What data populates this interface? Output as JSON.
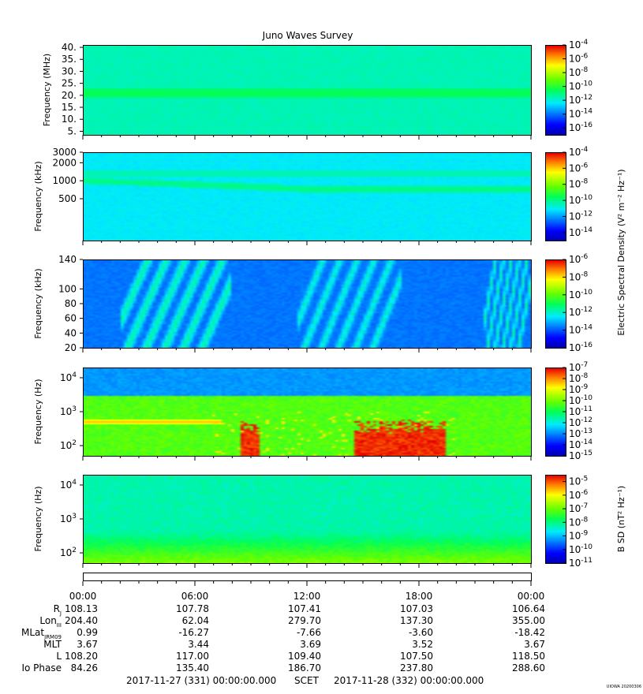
{
  "title": "Juno Waves Survey",
  "colors": {
    "background": "#ffffff",
    "text": "#000000"
  },
  "chart_data": [
    {
      "type": "heatmap",
      "panel": 1,
      "ylabel": "Frequency (MHz)",
      "yscale": "linear",
      "ylim": [
        3.5,
        41
      ],
      "yticks": [
        {
          "v": 40,
          "label": "40."
        },
        {
          "v": 35,
          "label": "35."
        },
        {
          "v": 30,
          "label": "30."
        },
        {
          "v": 25,
          "label": "25."
        },
        {
          "v": 20,
          "label": "20."
        },
        {
          "v": 15,
          "label": "15."
        },
        {
          "v": 10,
          "label": "10."
        },
        {
          "v": 5,
          "label": "5."
        }
      ],
      "colorbar": {
        "range_exp": [
          -17,
          -4
        ],
        "tick_exps": [
          -4,
          -6,
          -8,
          -10,
          -12,
          -14,
          -16
        ],
        "label": ""
      },
      "background_level_exp": -11.5,
      "features": [
        {
          "kind": "band",
          "center": 21,
          "width": 1.8,
          "level_exp": -10.3
        }
      ]
    },
    {
      "type": "heatmap",
      "panel": 2,
      "ylabel": "Frequency (kHz)",
      "yscale": "log",
      "ylim": [
        100,
        3000
      ],
      "yticks": [
        {
          "v": 3000,
          "label": "3000"
        },
        {
          "v": 2000,
          "label": "2000"
        },
        {
          "v": 1000,
          "label": "1000"
        },
        {
          "v": 500,
          "label": "500"
        }
      ],
      "colorbar": {
        "range_exp": [
          -15,
          -4
        ],
        "tick_exps": [
          -4,
          -6,
          -8,
          -10,
          -12,
          -14
        ],
        "label": "Electric Spectral Density (V² m⁻² Hz⁻¹)"
      },
      "background_level_exp": -11,
      "features": [
        {
          "kind": "band",
          "center": 1300,
          "width_log": 0.07,
          "level_exp": -10.2
        },
        {
          "kind": "band_descending",
          "center_start": 1000,
          "center_end": 720,
          "width_log": 0.06,
          "level_exp": -9.8
        }
      ]
    },
    {
      "type": "heatmap",
      "panel": 3,
      "ylabel": "Frequency (kHz)",
      "yscale": "linear",
      "ylim": [
        20,
        140
      ],
      "yticks": [
        {
          "v": 140,
          "label": "140"
        },
        {
          "v": 100,
          "label": "100"
        },
        {
          "v": 80,
          "label": "80"
        },
        {
          "v": 60,
          "label": "60"
        },
        {
          "v": 40,
          "label": "40"
        },
        {
          "v": 20,
          "label": "20"
        }
      ],
      "colorbar": {
        "range_exp": [
          -16,
          -6
        ],
        "tick_exps": [
          -6,
          -8,
          -10,
          -12,
          -14,
          -16
        ],
        "label": ""
      },
      "background_level_exp": -13.6,
      "features": [
        {
          "kind": "arcs",
          "t_start_h": 2.0,
          "t_end_h": 8.0,
          "level_exp": -11.5
        },
        {
          "kind": "arcs",
          "t_start_h": 11.5,
          "t_end_h": 17.0,
          "level_exp": -11.8
        },
        {
          "kind": "arcs",
          "t_start_h": 21.5,
          "t_end_h": 24.0,
          "level_exp": -11.6
        }
      ]
    },
    {
      "type": "heatmap",
      "panel": 4,
      "ylabel": "Frequency (Hz)",
      "yscale": "log",
      "ylim": [
        50,
        20000
      ],
      "yticks": [
        {
          "v": 10000,
          "base": "10",
          "exp": "4"
        },
        {
          "v": 1000,
          "base": "10",
          "exp": "3"
        },
        {
          "v": 100,
          "base": "10",
          "exp": "2"
        }
      ],
      "colorbar": {
        "range_exp": [
          -15,
          -7
        ],
        "tick_exps": [
          -7,
          -8,
          -9,
          -10,
          -11,
          -12,
          -13,
          -14,
          -15
        ],
        "label": ""
      },
      "background_level_exp": -12.8,
      "features": [
        {
          "kind": "cutoff",
          "upper_freq": 3000,
          "level_exp": -10.2
        },
        {
          "kind": "band",
          "center": 500,
          "width_log": 0.05,
          "t_start_h": 0.0,
          "t_end_h": 7.5,
          "level_exp": -8.3
        },
        {
          "kind": "burst",
          "t_start_h": 8.5,
          "t_end_h": 9.5,
          "f_max": 200,
          "level_exp": -7.3
        },
        {
          "kind": "burst",
          "t_start_h": 14.5,
          "t_end_h": 19.5,
          "f_max": 200,
          "level_exp": -7.3
        },
        {
          "kind": "spikes",
          "t_start_h": 7.0,
          "t_end_h": 20.0,
          "f_max": 1000,
          "level_exp": -8.6
        }
      ]
    },
    {
      "type": "heatmap",
      "panel": 5,
      "ylabel": "B SD (nT² Hz⁻¹)",
      "ylabel_axis": "Frequency (Hz)",
      "yscale": "log",
      "ylim": [
        50,
        20000
      ],
      "yticks": [
        {
          "v": 10000,
          "base": "10",
          "exp": "4"
        },
        {
          "v": 1000,
          "base": "10",
          "exp": "3"
        },
        {
          "v": 100,
          "base": "10",
          "exp": "2"
        }
      ],
      "colorbar": {
        "range_exp": [
          -11,
          -4.5
        ],
        "tick_exps": [
          -5,
          -6,
          -7,
          -8,
          -9,
          -10,
          -11
        ],
        "label": "B SD (nT² Hz⁻¹)"
      },
      "background_level_exp": -8.2,
      "features": [
        {
          "kind": "gradient_low",
          "level_exp": -7.0
        },
        {
          "kind": "spikes",
          "t_start_h": 0.0,
          "t_end_h": 24.0,
          "f_max": 20000,
          "level_exp": -8.8
        }
      ]
    }
  ],
  "ephemeris": {
    "time_labels": [
      "00:00",
      "06:00",
      "12:00",
      "18:00",
      "00:00"
    ],
    "rows": [
      {
        "label": "R",
        "sub": "J",
        "values": [
          "108.13",
          "107.78",
          "107.41",
          "107.03",
          "106.64"
        ]
      },
      {
        "label": "Lon",
        "sub": "III",
        "values": [
          "204.40",
          "62.04",
          "279.70",
          "137.30",
          "355.00"
        ]
      },
      {
        "label": "MLat",
        "sub": "JRM09",
        "values": [
          "0.99",
          "-16.27",
          "-7.66",
          "-3.60",
          "-18.42"
        ]
      },
      {
        "label": "MLT",
        "sub": "",
        "values": [
          "3.67",
          "3.44",
          "3.69",
          "3.52",
          "3.67"
        ]
      },
      {
        "label": "L",
        "sub": "",
        "values": [
          "108.20",
          "117.00",
          "109.40",
          "107.50",
          "118.50"
        ]
      },
      {
        "label": "Io Phase",
        "sub": "",
        "values": [
          "84.26",
          "135.40",
          "186.70",
          "237.80",
          "288.60"
        ]
      }
    ]
  },
  "footer": {
    "start": "2017-11-27 (331) 00:00:00.000",
    "scet": "SCET",
    "end": "2017-11-28 (332) 00:00:00.000",
    "stamp": "UIOWA 20200306"
  }
}
